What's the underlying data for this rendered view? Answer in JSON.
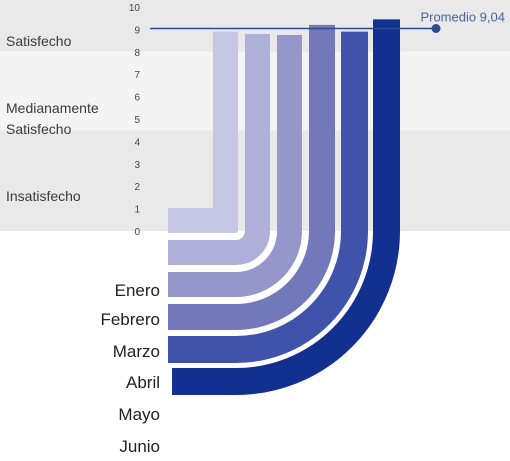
{
  "chart_data": {
    "type": "bar",
    "categories": [
      "Enero",
      "Febrero",
      "Marzo",
      "Abril",
      "Mayo",
      "Junio"
    ],
    "values": [
      8.9,
      8.8,
      8.75,
      9.2,
      8.9,
      9.45
    ],
    "ylim": [
      0,
      10
    ],
    "yticks": [
      "0",
      "1",
      "2",
      "3",
      "4",
      "5",
      "6",
      "7",
      "8",
      "9",
      "10"
    ],
    "bands": [
      {
        "label": "Satisfecho",
        "from": 8,
        "to": 10
      },
      {
        "label": "Medianamente Satisfecho",
        "from": 4.5,
        "to": 8
      },
      {
        "label": "Insatisfecho",
        "from": 0,
        "to": 4.5
      }
    ],
    "average": {
      "value": 9.04,
      "label": "Promedio 9,04"
    },
    "colors": [
      "#c6c7e4",
      "#aeb0da",
      "#9597ca",
      "#7378bb",
      "#4053ab",
      "#12308f"
    ],
    "band_colors": [
      "#e9e9e9",
      "#f4f4f4",
      "#e9e9e9"
    ],
    "average_color": "#2e4a8f",
    "grid": false
  }
}
